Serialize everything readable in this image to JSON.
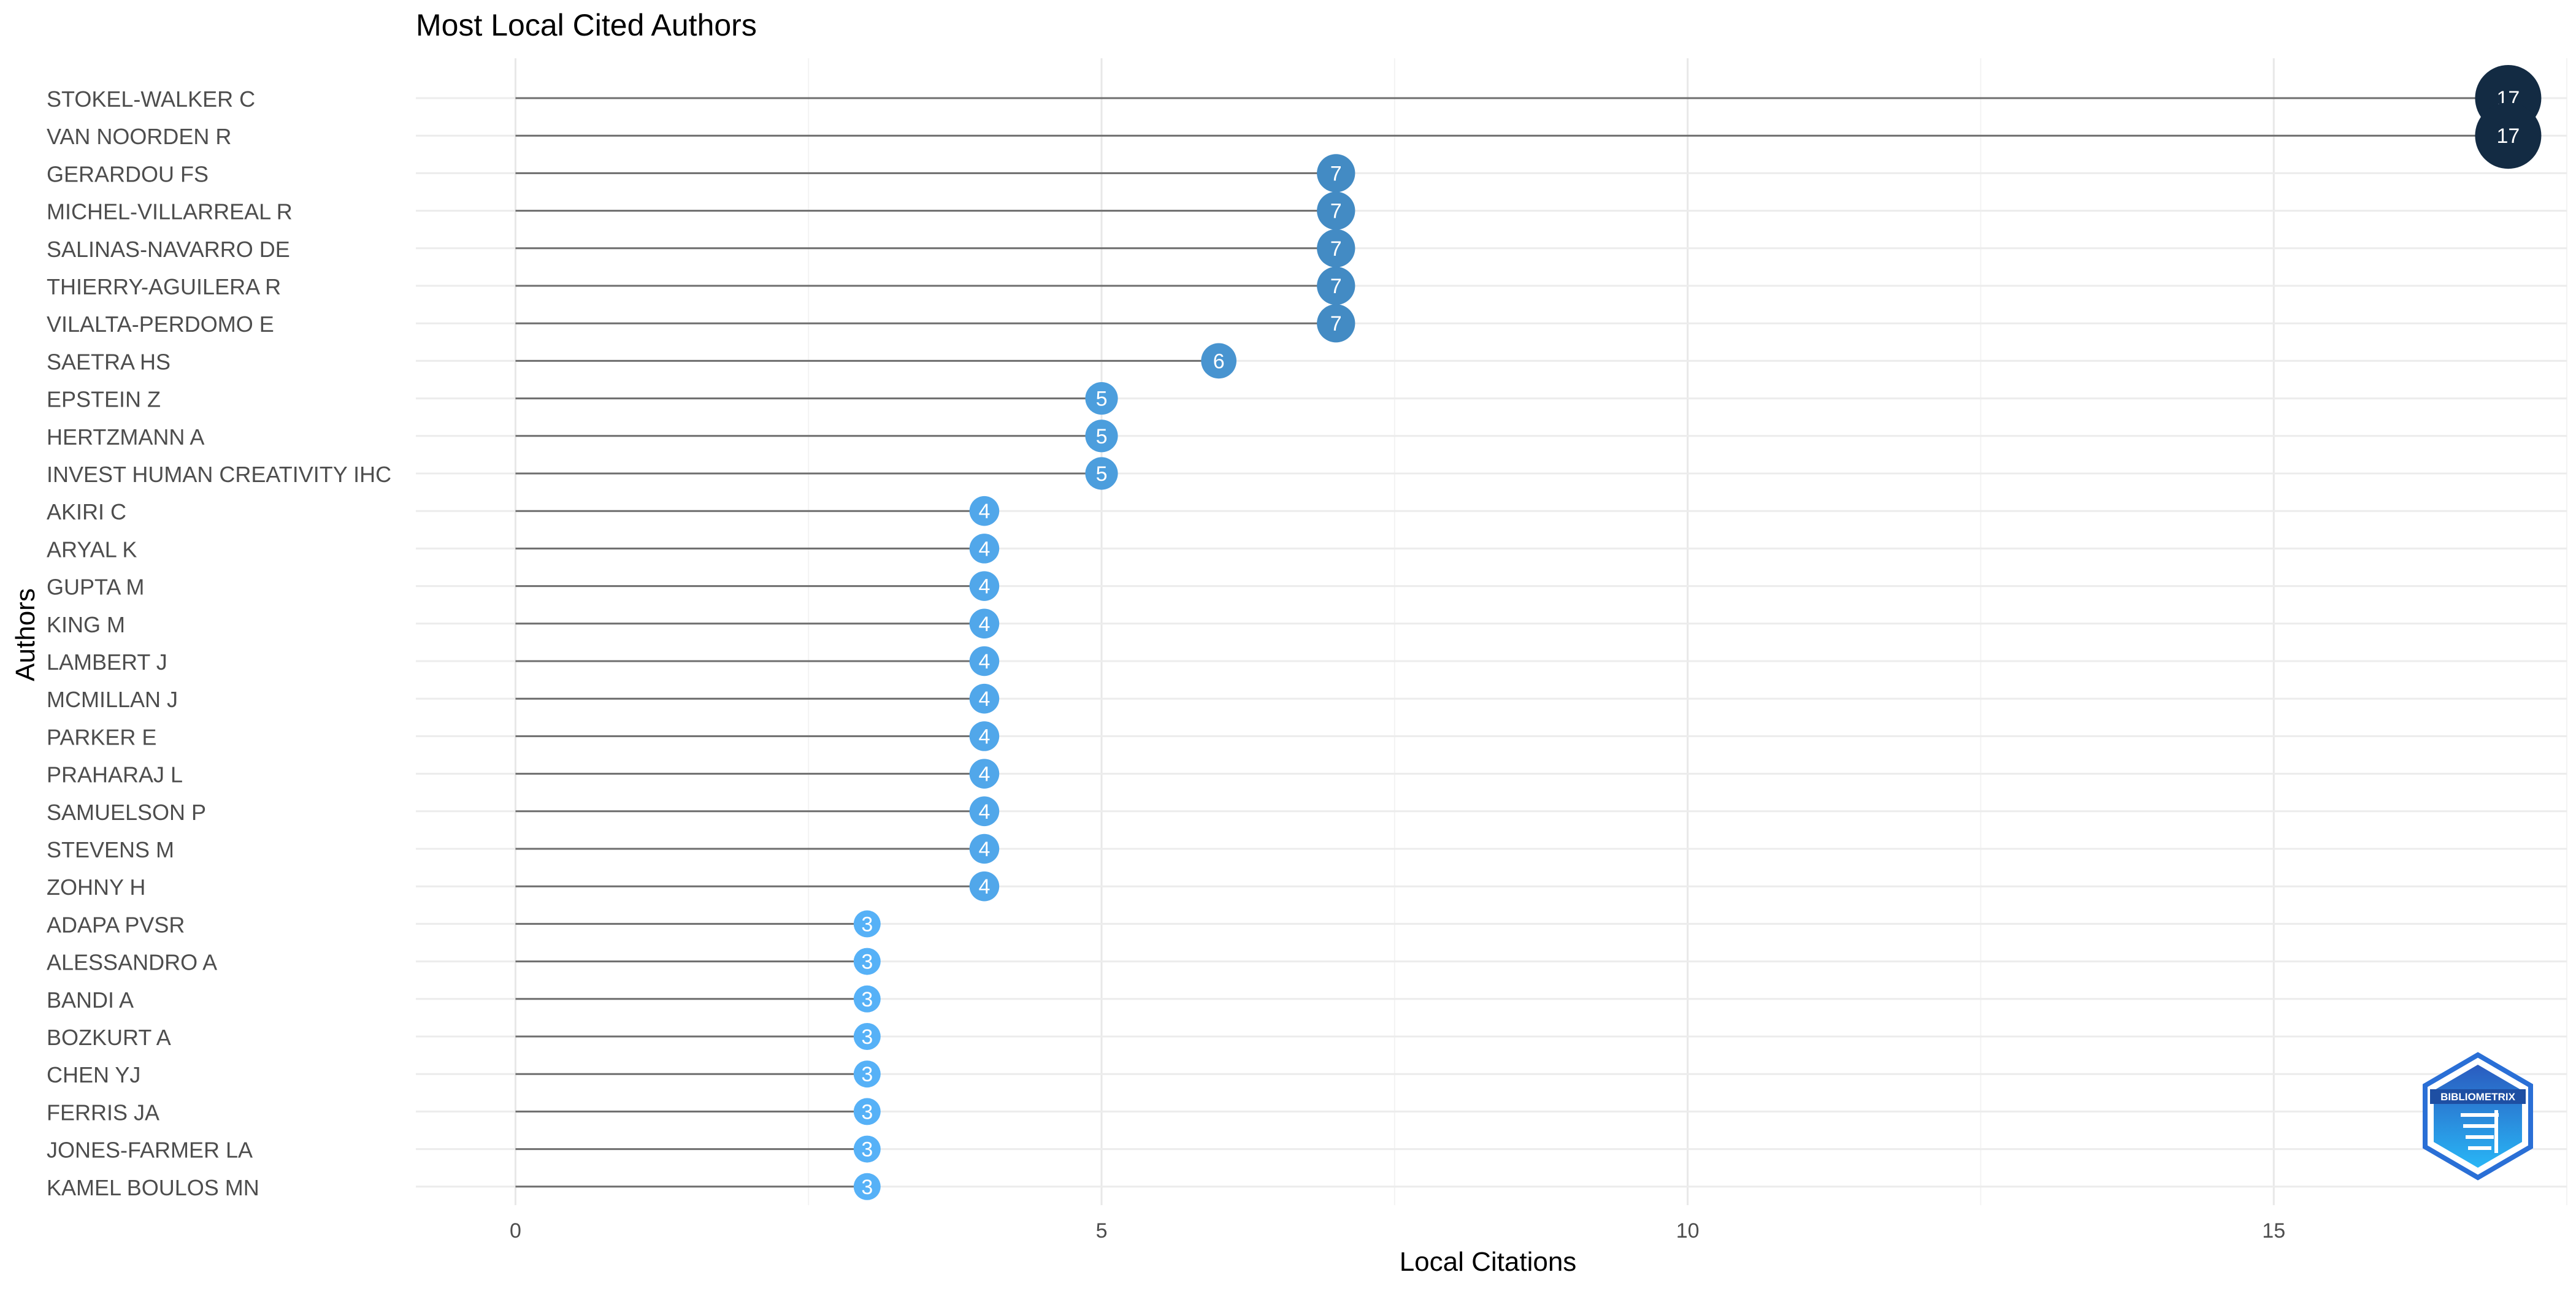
{
  "chart_data": {
    "type": "lollipop",
    "title": "Most Local Cited Authors",
    "xlabel": "Local Citations",
    "ylabel": "Authors",
    "xlim": [
      -0.85,
      17.5
    ],
    "xticks": [
      0,
      5,
      10,
      15
    ],
    "grid": true,
    "categories": [
      "STOKEL-WALKER C",
      "VAN NOORDEN R",
      "GERARDOU FS",
      "MICHEL-VILLARREAL R",
      "SALINAS-NAVARRO DE",
      "THIERRY-AGUILERA R",
      "VILALTA-PERDOMO E",
      "SAETRA HS",
      "EPSTEIN Z",
      "HERTZMANN A",
      "INVEST HUMAN CREATIVITY IHC",
      "AKIRI C",
      "ARYAL K",
      "GUPTA M",
      "KING M",
      "LAMBERT J",
      "MCMILLAN J",
      "PARKER E",
      "PRAHARAJ L",
      "SAMUELSON P",
      "STEVENS M",
      "ZOHNY H",
      "ADAPA PVSR",
      "ALESSANDRO A",
      "BANDI A",
      "BOZKURT A",
      "CHEN YJ",
      "FERRIS JA",
      "JONES-FARMER LA",
      "KAMEL BOULOS MN"
    ],
    "values": [
      17,
      17,
      7,
      7,
      7,
      7,
      7,
      6,
      5,
      5,
      5,
      4,
      4,
      4,
      4,
      4,
      4,
      4,
      4,
      4,
      4,
      4,
      3,
      3,
      3,
      3,
      3,
      3,
      3,
      3
    ],
    "color_scale": {
      "low": "#56b1f7",
      "high": "#132b43"
    }
  },
  "logo": {
    "text": "BIBLIOMETRIX",
    "name": "bibliometrix-logo"
  }
}
